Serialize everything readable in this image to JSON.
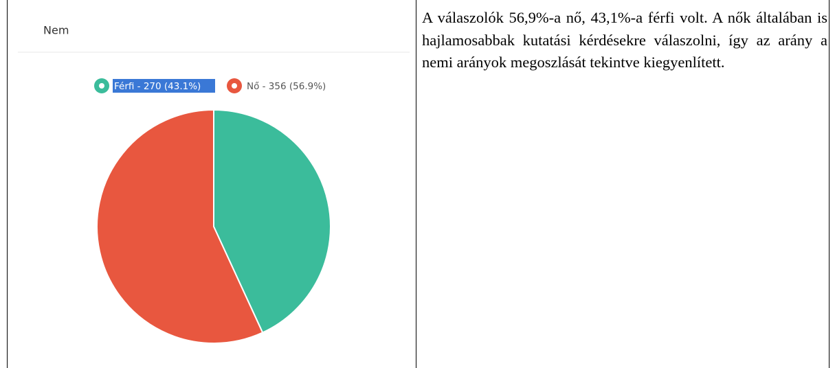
{
  "chart_data": {
    "type": "pie",
    "title": "Nem",
    "categories": [
      "Férfi - 270 (43.1%)",
      "Nő - 356 (56.9%)"
    ],
    "values": [
      270,
      356
    ],
    "colors": [
      "#3bbc9b",
      "#e8573f"
    ]
  },
  "text": "A válaszolók 56,9%-a nő, 43,1%-a férfi volt. A nők általában is hajlamosabbak kutatási kérdésekre válaszolni, így az arány a nemi arányok megoszlását tekintve kiegyenlített."
}
